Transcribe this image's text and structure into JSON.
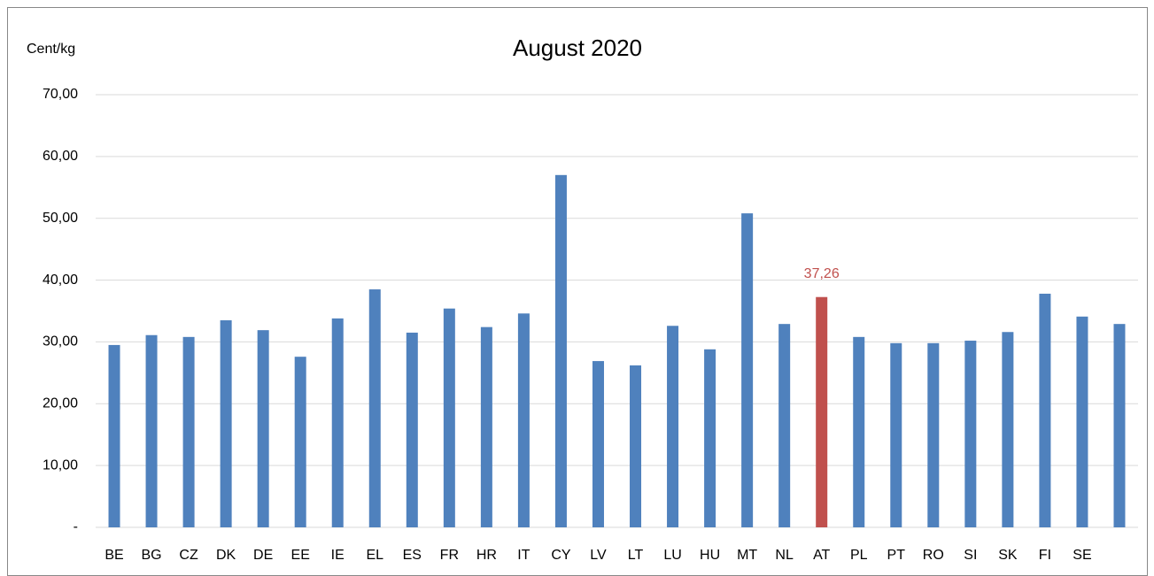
{
  "chart_data": {
    "type": "bar",
    "title": "August 2020",
    "y_label": "Cent/kg",
    "categories": [
      "BE",
      "BG",
      "CZ",
      "DK",
      "DE",
      "EE",
      "IE",
      "EL",
      "ES",
      "FR",
      "HR",
      "IT",
      "CY",
      "LV",
      "LT",
      "LU",
      "HU",
      "MT",
      "NL",
      "AT",
      "PL",
      "PT",
      "RO",
      "SI",
      "SK",
      "FI",
      "SE",
      null
    ],
    "values": [
      29.5,
      31.1,
      30.8,
      33.5,
      31.9,
      27.6,
      33.8,
      38.5,
      31.5,
      35.4,
      32.4,
      34.6,
      57.0,
      26.9,
      26.2,
      32.6,
      28.8,
      50.8,
      32.9,
      37.26,
      30.8,
      29.8,
      29.8,
      30.2,
      31.6,
      37.8,
      34.1,
      32.9
    ],
    "value_labels": [
      null,
      null,
      null,
      null,
      null,
      null,
      null,
      null,
      null,
      null,
      null,
      null,
      null,
      null,
      null,
      null,
      null,
      null,
      null,
      "37,26",
      null,
      null,
      null,
      null,
      null,
      null,
      null,
      null
    ],
    "colors": [
      "#4f81bd",
      "#4f81bd",
      "#4f81bd",
      "#4f81bd",
      "#4f81bd",
      "#4f81bd",
      "#4f81bd",
      "#4f81bd",
      "#4f81bd",
      "#4f81bd",
      "#4f81bd",
      "#4f81bd",
      "#4f81bd",
      "#4f81bd",
      "#4f81bd",
      "#4f81bd",
      "#4f81bd",
      "#4f81bd",
      "#4f81bd",
      "#c0504d",
      "#4f81bd",
      "#4f81bd",
      "#4f81bd",
      "#4f81bd",
      "#4f81bd",
      "#4f81bd",
      "#4f81bd",
      "#4f81bd"
    ],
    "value_label_color": "#c0504d",
    "ylim": [
      0,
      70
    ],
    "yticks": [
      {
        "value": 0,
        "label": "-"
      },
      {
        "value": 10,
        "label": "10,00"
      },
      {
        "value": 20,
        "label": "20,00"
      },
      {
        "value": 30,
        "label": "30,00"
      },
      {
        "value": 40,
        "label": "40,00"
      },
      {
        "value": 50,
        "label": "50,00"
      },
      {
        "value": 60,
        "label": "60,00"
      },
      {
        "value": 70,
        "label": "70,00"
      }
    ],
    "grid": true
  }
}
